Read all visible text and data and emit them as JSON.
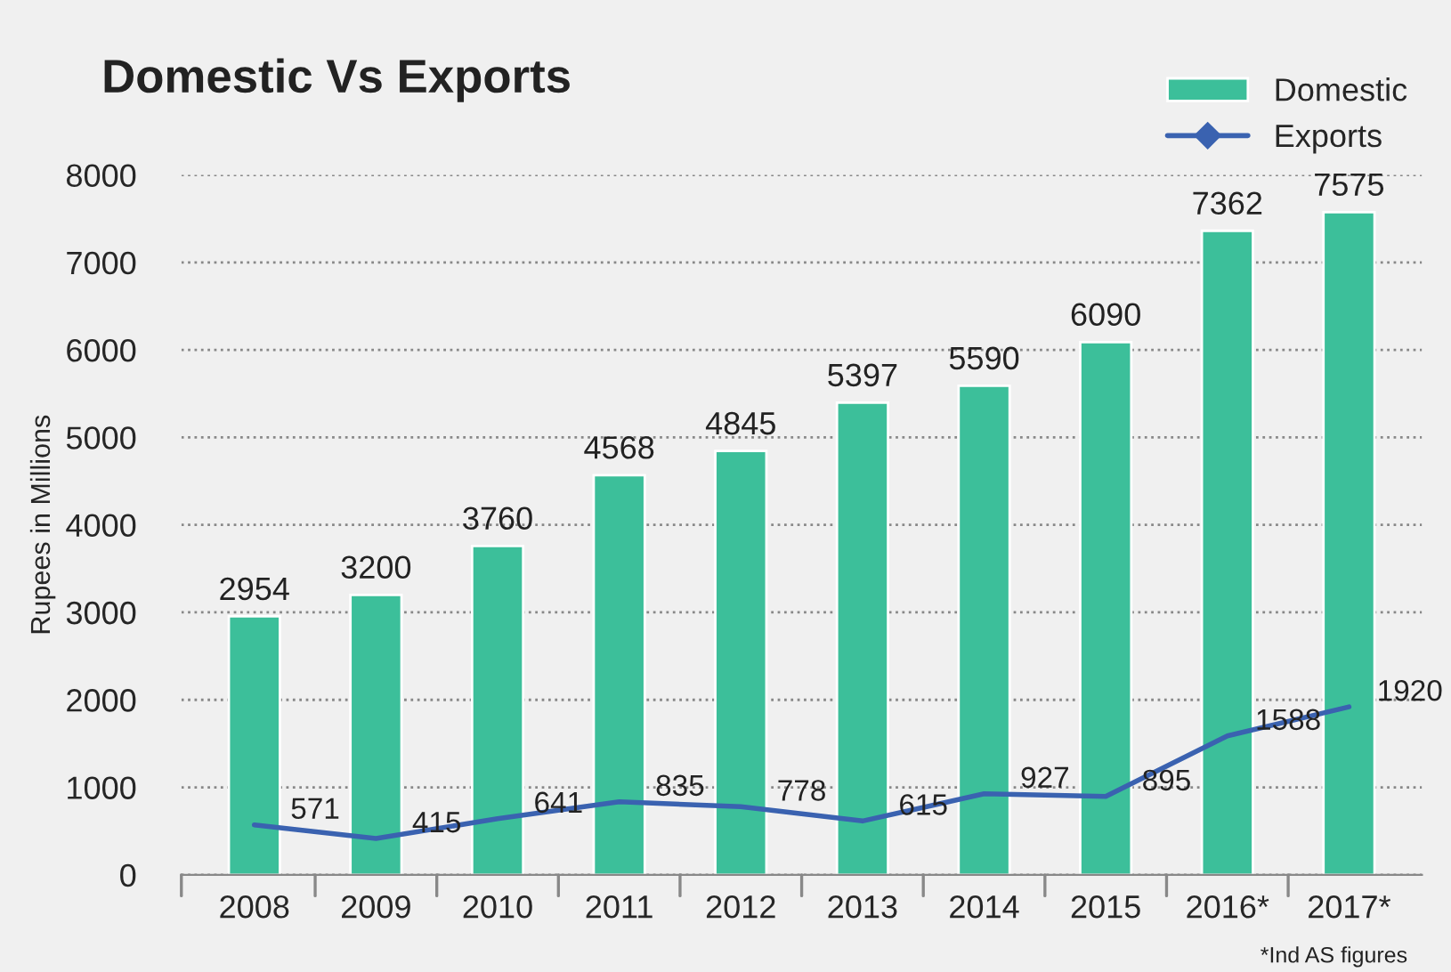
{
  "chart_data": {
    "type": "bar",
    "title": "Domestic Vs Exports",
    "ylabel": "Rupees in Millions",
    "categories": [
      "2008",
      "2009",
      "2010",
      "2011",
      "2012",
      "2013",
      "2014",
      "2015",
      "2016*",
      "2017*"
    ],
    "series": [
      {
        "name": "Domestic",
        "color": "#3cbf9a",
        "values": [
          2954,
          3200,
          3760,
          4568,
          4845,
          5397,
          5590,
          6090,
          7362,
          7575
        ]
      },
      {
        "name": "Exports",
        "type": "line",
        "color": "#3a62b0",
        "values": [
          571,
          415,
          641,
          835,
          778,
          615,
          927,
          895,
          1588,
          1920
        ]
      }
    ],
    "ylim": [
      0,
      8000
    ],
    "yticks": [
      0,
      1000,
      2000,
      3000,
      4000,
      5000,
      6000,
      7000,
      8000
    ],
    "grid": "y",
    "legend": "top right",
    "data_labels": true,
    "line_style": "solid",
    "annotations": [
      "*Ind AS figures"
    ]
  }
}
